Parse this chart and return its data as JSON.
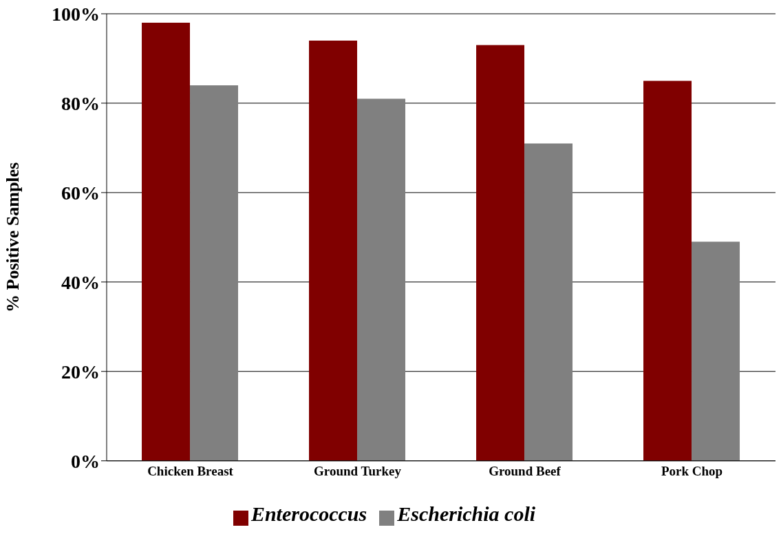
{
  "chart_data": {
    "type": "bar",
    "ylabel": "% Positive Samples",
    "categories": [
      "Chicken Breast",
      "Ground Turkey",
      "Ground Beef",
      "Pork Chop"
    ],
    "series": [
      {
        "name": "Enterococcus",
        "color": "#800000",
        "values": [
          98,
          94,
          93,
          85
        ]
      },
      {
        "name": "Escherichia coli",
        "color": "#808080",
        "values": [
          84,
          81,
          71,
          49
        ]
      }
    ],
    "ylim": [
      0,
      100
    ],
    "yticks": [
      {
        "value": 0,
        "label": "0%"
      },
      {
        "value": 20,
        "label": "20%"
      },
      {
        "value": 40,
        "label": "40%"
      },
      {
        "value": 60,
        "label": "60%"
      },
      {
        "value": 80,
        "label": "80%"
      },
      {
        "value": 100,
        "label": "100%"
      }
    ],
    "grid": "y",
    "legend": "bottom"
  }
}
